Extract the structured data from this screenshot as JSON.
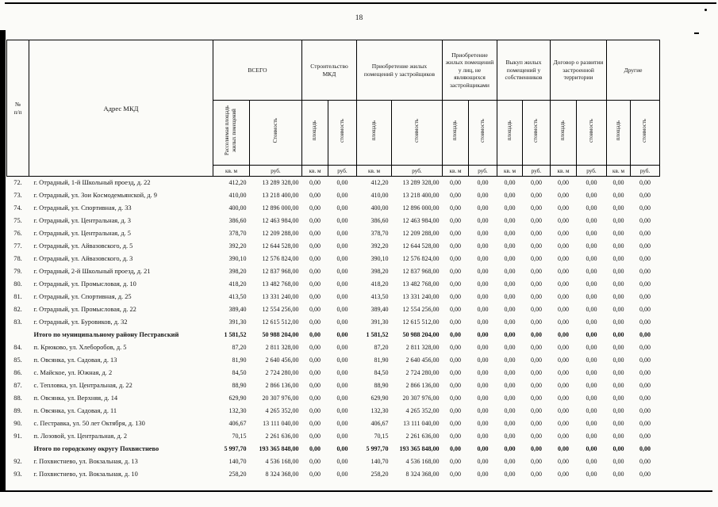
{
  "page": {
    "number": "18"
  },
  "table": {
    "header": {
      "num_label": "№\nп/п",
      "address_label": "Адрес МКД",
      "groups": [
        "ВСЕГО",
        "Строительство МКД",
        "Приобретение жилых помещений у застройщиков",
        "Приобретение жилых помещений у лиц, не являющихся застройщиками",
        "Выкуп жилых помещений у собственников",
        "Договор о развитии застроенной территории",
        "Другие"
      ],
      "rotated": [
        "Расселяемая площадь жилых помещений",
        "Стоимость",
        "площадь",
        "стоимость",
        "площадь",
        "стоимость",
        "площадь",
        "стоимость",
        "площадь",
        "стоимость",
        "площадь",
        "стоимость",
        "площадь",
        "стоимость"
      ],
      "units": [
        "кв. м",
        "руб.",
        "кв. м",
        "руб.",
        "кв. м",
        "руб.",
        "кв. м",
        "руб.",
        "кв. м",
        "руб.",
        "кв. м",
        "руб.",
        "кв. м",
        "руб."
      ]
    },
    "rows": [
      {
        "num": "72.",
        "address": "г. Отрадный, 1-й Школьный проезд, д. 22",
        "values": [
          "412,20",
          "13 289 328,00",
          "0,00",
          "0,00",
          "412,20",
          "13 289 328,00",
          "0,00",
          "0,00",
          "0,00",
          "0,00",
          "0,00",
          "0,00",
          "0,00",
          "0,00"
        ]
      },
      {
        "num": "73.",
        "address": "г. Отрадный, ул. Зои Космодемьянской, д. 9",
        "values": [
          "410,00",
          "13 218 400,00",
          "0,00",
          "0,00",
          "410,00",
          "13 218 400,00",
          "0,00",
          "0,00",
          "0,00",
          "0,00",
          "0,00",
          "0,00",
          "0,00",
          "0,00"
        ]
      },
      {
        "num": "74.",
        "address": "г. Отрадный, ул. Спортивная, д. 33",
        "values": [
          "400,00",
          "12 896 000,00",
          "0,00",
          "0,00",
          "400,00",
          "12 896 000,00",
          "0,00",
          "0,00",
          "0,00",
          "0,00",
          "0,00",
          "0,00",
          "0,00",
          "0,00"
        ]
      },
      {
        "num": "75.",
        "address": "г. Отрадный, ул. Центральная, д. 3",
        "values": [
          "386,60",
          "12 463 984,00",
          "0,00",
          "0,00",
          "386,60",
          "12 463 984,00",
          "0,00",
          "0,00",
          "0,00",
          "0,00",
          "0,00",
          "0,00",
          "0,00",
          "0,00"
        ]
      },
      {
        "num": "76.",
        "address": "г. Отрадный, ул. Центральная, д. 5",
        "values": [
          "378,70",
          "12 209 288,00",
          "0,00",
          "0,00",
          "378,70",
          "12 209 288,00",
          "0,00",
          "0,00",
          "0,00",
          "0,00",
          "0,00",
          "0,00",
          "0,00",
          "0,00"
        ]
      },
      {
        "num": "77.",
        "address": "г. Отрадный, ул. Айвазовского, д. 5",
        "values": [
          "392,20",
          "12 644 528,00",
          "0,00",
          "0,00",
          "392,20",
          "12 644 528,00",
          "0,00",
          "0,00",
          "0,00",
          "0,00",
          "0,00",
          "0,00",
          "0,00",
          "0,00"
        ]
      },
      {
        "num": "78.",
        "address": "г. Отрадный, ул. Айвазовского, д. 3",
        "values": [
          "390,10",
          "12 576 824,00",
          "0,00",
          "0,00",
          "390,10",
          "12 576 824,00",
          "0,00",
          "0,00",
          "0,00",
          "0,00",
          "0,00",
          "0,00",
          "0,00",
          "0,00"
        ]
      },
      {
        "num": "79.",
        "address": "г. Отрадный, 2-й Школьный проезд, д. 21",
        "values": [
          "398,20",
          "12 837 968,00",
          "0,00",
          "0,00",
          "398,20",
          "12 837 968,00",
          "0,00",
          "0,00",
          "0,00",
          "0,00",
          "0,00",
          "0,00",
          "0,00",
          "0,00"
        ]
      },
      {
        "num": "80.",
        "address": "г. Отрадный, ул. Промысловая, д. 10",
        "values": [
          "418,20",
          "13 482 768,00",
          "0,00",
          "0,00",
          "418,20",
          "13 482 768,00",
          "0,00",
          "0,00",
          "0,00",
          "0,00",
          "0,00",
          "0,00",
          "0,00",
          "0,00"
        ]
      },
      {
        "num": "81.",
        "address": "г. Отрадный, ул. Спортивная, д. 25",
        "values": [
          "413,50",
          "13 331 240,00",
          "0,00",
          "0,00",
          "413,50",
          "13 331 240,00",
          "0,00",
          "0,00",
          "0,00",
          "0,00",
          "0,00",
          "0,00",
          "0,00",
          "0,00"
        ]
      },
      {
        "num": "82.",
        "address": "г. Отрадный, ул. Промысловая, д. 22",
        "values": [
          "389,40",
          "12 554 256,00",
          "0,00",
          "0,00",
          "389,40",
          "12 554 256,00",
          "0,00",
          "0,00",
          "0,00",
          "0,00",
          "0,00",
          "0,00",
          "0,00",
          "0,00"
        ]
      },
      {
        "num": "83.",
        "address": "г. Отрадный, ул. Буровиков, д. 32",
        "values": [
          "391,30",
          "12 615 512,00",
          "0,00",
          "0,00",
          "391,30",
          "12 615 512,00",
          "0,00",
          "0,00",
          "0,00",
          "0,00",
          "0,00",
          "0,00",
          "0,00",
          "0,00"
        ]
      },
      {
        "num": "",
        "address": "Итого по муниципальному району Пестравский",
        "bold": true,
        "values": [
          "1 581,52",
          "50 988 204,00",
          "0,00",
          "0,00",
          "1 581,52",
          "50 988 204,00",
          "0,00",
          "0,00",
          "0,00",
          "0,00",
          "0,00",
          "0,00",
          "0,00",
          "0,00"
        ]
      },
      {
        "num": "84.",
        "address": "п. Крюково, ул. Хлеборобов, д. 5",
        "values": [
          "87,20",
          "2 811 328,00",
          "0,00",
          "0,00",
          "87,20",
          "2 811 328,00",
          "0,00",
          "0,00",
          "0,00",
          "0,00",
          "0,00",
          "0,00",
          "0,00",
          "0,00"
        ]
      },
      {
        "num": "85.",
        "address": "п. Овсянка, ул. Садовая, д. 13",
        "values": [
          "81,90",
          "2 640 456,00",
          "0,00",
          "0,00",
          "81,90",
          "2 640 456,00",
          "0,00",
          "0,00",
          "0,00",
          "0,00",
          "0,00",
          "0,00",
          "0,00",
          "0,00"
        ]
      },
      {
        "num": "86.",
        "address": "с. Майское, ул. Южная, д. 2",
        "values": [
          "84,50",
          "2 724 280,00",
          "0,00",
          "0,00",
          "84,50",
          "2 724 280,00",
          "0,00",
          "0,00",
          "0,00",
          "0,00",
          "0,00",
          "0,00",
          "0,00",
          "0,00"
        ]
      },
      {
        "num": "87.",
        "address": "с. Тепловка, ул. Центральная, д. 22",
        "values": [
          "88,90",
          "2 866 136,00",
          "0,00",
          "0,00",
          "88,90",
          "2 866 136,00",
          "0,00",
          "0,00",
          "0,00",
          "0,00",
          "0,00",
          "0,00",
          "0,00",
          "0,00"
        ]
      },
      {
        "num": "88.",
        "address": "п. Овсянка, ул. Верхняя, д. 14",
        "values": [
          "629,90",
          "20 307 976,00",
          "0,00",
          "0,00",
          "629,90",
          "20 307 976,00",
          "0,00",
          "0,00",
          "0,00",
          "0,00",
          "0,00",
          "0,00",
          "0,00",
          "0,00"
        ]
      },
      {
        "num": "89.",
        "address": "п. Овсянка, ул. Садовая, д. 11",
        "values": [
          "132,30",
          "4 265 352,00",
          "0,00",
          "0,00",
          "132,30",
          "4 265 352,00",
          "0,00",
          "0,00",
          "0,00",
          "0,00",
          "0,00",
          "0,00",
          "0,00",
          "0,00"
        ]
      },
      {
        "num": "90.",
        "address": "с. Пестравка, ул. 50 лет Октября, д. 130",
        "values": [
          "406,67",
          "13 111 040,00",
          "0,00",
          "0,00",
          "406,67",
          "13 111 040,00",
          "0,00",
          "0,00",
          "0,00",
          "0,00",
          "0,00",
          "0,00",
          "0,00",
          "0,00"
        ]
      },
      {
        "num": "91.",
        "address": "п. Лозовой, ул. Центральная, д. 2",
        "values": [
          "70,15",
          "2 261 636,00",
          "0,00",
          "0,00",
          "70,15",
          "2 261 636,00",
          "0,00",
          "0,00",
          "0,00",
          "0,00",
          "0,00",
          "0,00",
          "0,00",
          "0,00"
        ]
      },
      {
        "num": "",
        "address": "Итого по городскому округу Похвистнево",
        "bold": true,
        "values": [
          "5 997,70",
          "193 365 848,00",
          "0,00",
          "0,00",
          "5 997,70",
          "193 365 848,00",
          "0,00",
          "0,00",
          "0,00",
          "0,00",
          "0,00",
          "0,00",
          "0,00",
          "0,00"
        ]
      },
      {
        "num": "92.",
        "address": "г. Похвистнево, ул. Вокзальная, д. 13",
        "values": [
          "140,70",
          "4 536 168,00",
          "0,00",
          "0,00",
          "140,70",
          "4 536 168,00",
          "0,00",
          "0,00",
          "0,00",
          "0,00",
          "0,00",
          "0,00",
          "0,00",
          "0,00"
        ]
      },
      {
        "num": "93.",
        "address": "г. Похвистнево, ул. Вокзальная, д. 10",
        "values": [
          "258,20",
          "8 324 368,00",
          "0,00",
          "0,00",
          "258,20",
          "8 324 368,00",
          "0,00",
          "0,00",
          "0,00",
          "0,00",
          "0,00",
          "0,00",
          "0,00",
          "0,00"
        ]
      }
    ]
  }
}
